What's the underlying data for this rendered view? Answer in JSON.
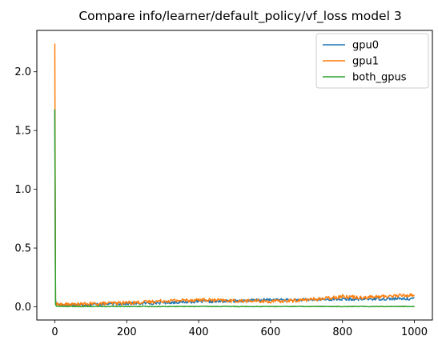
{
  "chart_data": {
    "type": "line",
    "title": "Compare info/learner/default_policy/vf_loss model 3",
    "xlabel": "",
    "ylabel": "",
    "xlim": [
      -50,
      1050
    ],
    "ylim": [
      -0.1123,
      2.352
    ],
    "xticks": [
      0,
      200,
      400,
      600,
      800,
      1000
    ],
    "yticks": [
      0.0,
      0.5,
      1.0,
      1.5,
      2.0
    ],
    "xtick_labels": [
      "0",
      "200",
      "400",
      "600",
      "800",
      "1000"
    ],
    "ytick_labels": [
      "0.0",
      "0.5",
      "1.0",
      "1.5",
      "2.0"
    ],
    "grid": false,
    "legend_position": "top-right",
    "series": [
      {
        "name": "gpu0",
        "color": "#1f77b4",
        "x": [
          0,
          1,
          2,
          3,
          5,
          8,
          12,
          20,
          40,
          60,
          100,
          150,
          200,
          250,
          300,
          350,
          400,
          450,
          500,
          550,
          600,
          650,
          700,
          750,
          800,
          850,
          900,
          950,
          1000
        ],
        "y": [
          1.68,
          0.12,
          0.06,
          0.035,
          0.025,
          0.022,
          0.02,
          0.018,
          0.018,
          0.018,
          0.02,
          0.025,
          0.028,
          0.03,
          0.035,
          0.04,
          0.045,
          0.045,
          0.05,
          0.055,
          0.06,
          0.058,
          0.06,
          0.062,
          0.065,
          0.065,
          0.068,
          0.068,
          0.07
        ],
        "noise": 0.012
      },
      {
        "name": "gpu1",
        "color": "#ff7f0e",
        "x": [
          0,
          1,
          2,
          3,
          5,
          8,
          12,
          20,
          40,
          60,
          100,
          150,
          200,
          250,
          300,
          350,
          400,
          450,
          500,
          550,
          600,
          650,
          700,
          750,
          800,
          850,
          900,
          950,
          1000
        ],
        "y": [
          2.24,
          0.1,
          0.045,
          0.03,
          0.022,
          0.02,
          0.02,
          0.02,
          0.02,
          0.02,
          0.025,
          0.03,
          0.035,
          0.04,
          0.05,
          0.055,
          0.06,
          0.055,
          0.05,
          0.05,
          0.045,
          0.05,
          0.06,
          0.07,
          0.09,
          0.08,
          0.085,
          0.095,
          0.1
        ],
        "noise": 0.015
      },
      {
        "name": "both_gpus",
        "color": "#2ca02c",
        "x": [
          0,
          1,
          2,
          3,
          5,
          8,
          12,
          20,
          40,
          60,
          100,
          200,
          300,
          400,
          500,
          600,
          700,
          800,
          900,
          1000
        ],
        "y": [
          1.68,
          0.06,
          0.02,
          0.01,
          0.006,
          0.005,
          0.004,
          0.004,
          0.003,
          0.003,
          0.003,
          0.003,
          0.003,
          0.003,
          0.003,
          0.003,
          0.003,
          0.003,
          0.003,
          0.003
        ],
        "noise": 0.003
      }
    ]
  }
}
